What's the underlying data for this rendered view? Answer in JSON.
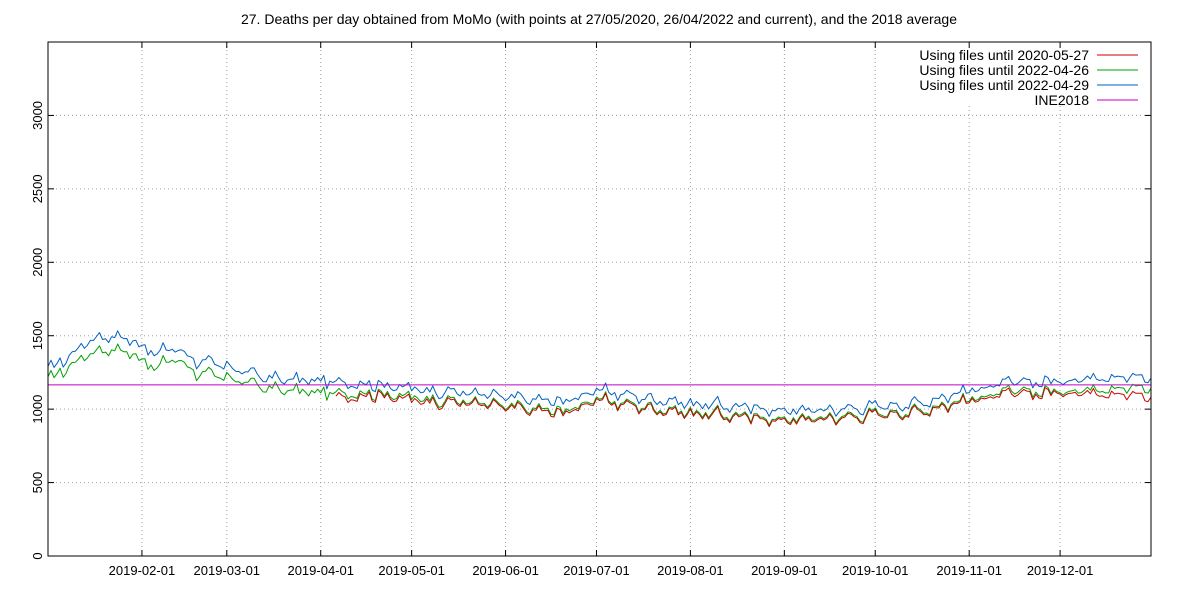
{
  "chart_data": {
    "type": "line",
    "title": "27. Deaths per day obtained from MoMo (with points at 27/05/2020, 26/04/2022 and current), and the 2018 average",
    "xlabel": "",
    "ylabel": "",
    "x_start": "2019-01-01",
    "x_end": "2019-12-31",
    "ylim": [
      0,
      3500
    ],
    "y_ticks": [
      0,
      500,
      1000,
      1500,
      2000,
      2500,
      3000
    ],
    "x_ticks": [
      "2019-02-01",
      "2019-03-01",
      "2019-04-01",
      "2019-05-01",
      "2019-06-01",
      "2019-07-01",
      "2019-08-01",
      "2019-09-01",
      "2019-10-01",
      "2019-11-01",
      "2019-12-01"
    ],
    "grid": true,
    "legend_position": "top-right",
    "series": [
      {
        "name": "Using files until 2020-05-27",
        "color": "#cc0000",
        "start_date": "2019-04-06",
        "anchors": [
          [
            "2019-04-06",
            1080
          ],
          [
            "2019-04-20",
            1100
          ],
          [
            "2019-05-01",
            1060
          ],
          [
            "2019-05-20",
            1040
          ],
          [
            "2019-06-01",
            1010
          ],
          [
            "2019-06-20",
            970
          ],
          [
            "2019-07-01",
            1060
          ],
          [
            "2019-07-20",
            1000
          ],
          [
            "2019-08-01",
            970
          ],
          [
            "2019-08-15",
            950
          ],
          [
            "2019-09-01",
            920
          ],
          [
            "2019-09-20",
            940
          ],
          [
            "2019-10-01",
            960
          ],
          [
            "2019-10-15",
            980
          ],
          [
            "2019-11-01",
            1060
          ],
          [
            "2019-11-15",
            1100
          ],
          [
            "2019-12-01",
            1110
          ],
          [
            "2019-12-15",
            1120
          ],
          [
            "2019-12-31",
            1080
          ]
        ]
      },
      {
        "name": "Using files until 2022-04-26",
        "color": "#00a000",
        "start_date": "2019-01-01",
        "anchors": [
          [
            "2019-01-01",
            1200
          ],
          [
            "2019-01-08",
            1290
          ],
          [
            "2019-01-15",
            1390
          ],
          [
            "2019-01-22",
            1410
          ],
          [
            "2019-01-29",
            1380
          ],
          [
            "2019-02-05",
            1280
          ],
          [
            "2019-02-12",
            1350
          ],
          [
            "2019-02-19",
            1250
          ],
          [
            "2019-02-26",
            1220
          ],
          [
            "2019-03-05",
            1200
          ],
          [
            "2019-03-15",
            1140
          ],
          [
            "2019-04-01",
            1110
          ],
          [
            "2019-04-20",
            1110
          ],
          [
            "2019-05-01",
            1080
          ],
          [
            "2019-05-20",
            1050
          ],
          [
            "2019-06-01",
            1020
          ],
          [
            "2019-06-20",
            985
          ],
          [
            "2019-07-01",
            1070
          ],
          [
            "2019-07-20",
            1010
          ],
          [
            "2019-08-01",
            980
          ],
          [
            "2019-08-15",
            960
          ],
          [
            "2019-09-01",
            930
          ],
          [
            "2019-09-20",
            950
          ],
          [
            "2019-10-01",
            970
          ],
          [
            "2019-10-15",
            990
          ],
          [
            "2019-11-01",
            1070
          ],
          [
            "2019-11-15",
            1120
          ],
          [
            "2019-12-01",
            1120
          ],
          [
            "2019-12-15",
            1150
          ],
          [
            "2019-12-31",
            1140
          ]
        ]
      },
      {
        "name": "Using files until 2022-04-29",
        "color": "#0060c0",
        "start_date": "2019-01-01",
        "anchors": [
          [
            "2019-01-01",
            1270
          ],
          [
            "2019-01-08",
            1360
          ],
          [
            "2019-01-15",
            1480
          ],
          [
            "2019-01-22",
            1500
          ],
          [
            "2019-01-29",
            1470
          ],
          [
            "2019-02-05",
            1380
          ],
          [
            "2019-02-12",
            1420
          ],
          [
            "2019-02-19",
            1330
          ],
          [
            "2019-02-26",
            1300
          ],
          [
            "2019-03-05",
            1270
          ],
          [
            "2019-03-15",
            1210
          ],
          [
            "2019-04-01",
            1190
          ],
          [
            "2019-04-20",
            1170
          ],
          [
            "2019-05-01",
            1140
          ],
          [
            "2019-05-20",
            1110
          ],
          [
            "2019-06-01",
            1080
          ],
          [
            "2019-06-20",
            1050
          ],
          [
            "2019-07-01",
            1130
          ],
          [
            "2019-07-20",
            1070
          ],
          [
            "2019-08-01",
            1040
          ],
          [
            "2019-08-15",
            1020
          ],
          [
            "2019-09-01",
            990
          ],
          [
            "2019-09-20",
            1000
          ],
          [
            "2019-10-01",
            1020
          ],
          [
            "2019-10-15",
            1040
          ],
          [
            "2019-11-01",
            1130
          ],
          [
            "2019-11-15",
            1180
          ],
          [
            "2019-12-01",
            1190
          ],
          [
            "2019-12-15",
            1230
          ],
          [
            "2019-12-31",
            1210
          ]
        ]
      },
      {
        "name": "INE2018",
        "color": "#c000c0",
        "constant": 1165
      }
    ]
  }
}
